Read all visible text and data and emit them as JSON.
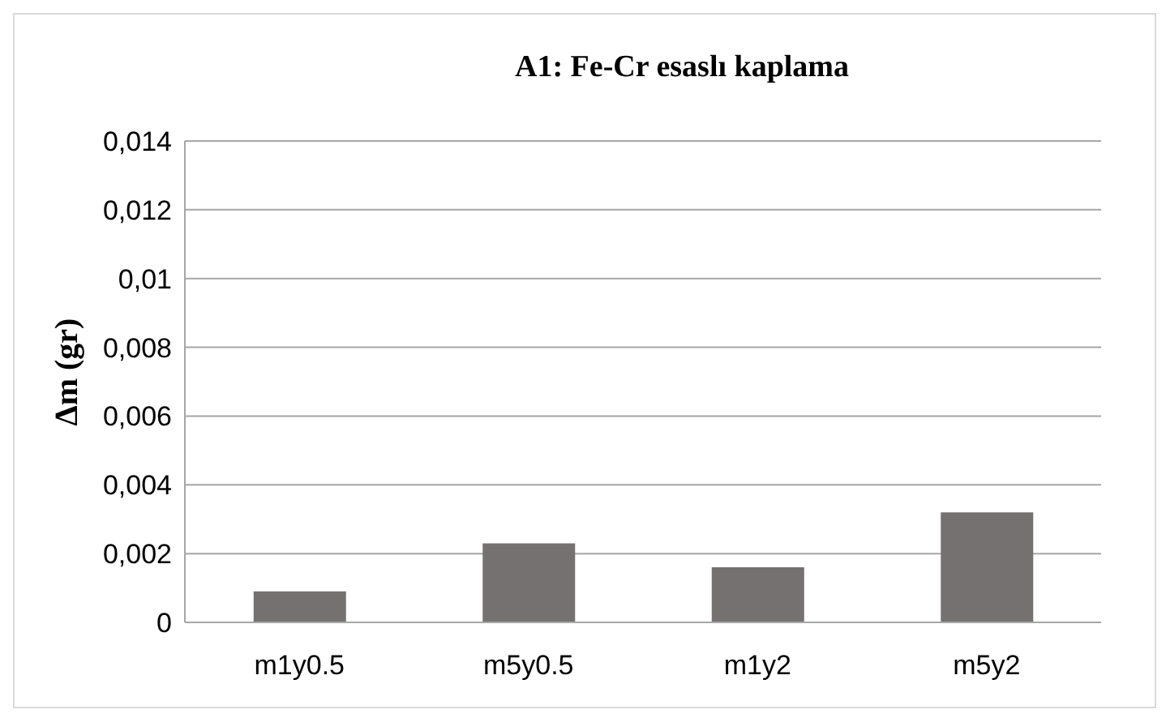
{
  "chart_data": {
    "type": "bar",
    "title": "A1: Fe-Cr esaslı kaplama",
    "ylabel": "Δm (gr)",
    "categories": [
      "m1y0.5",
      "m5y0.5",
      "m1y2",
      "m5y2"
    ],
    "values": [
      0.0009,
      0.0023,
      0.0016,
      0.0032
    ],
    "color": "#767171",
    "ylim": [
      0,
      0.014
    ],
    "yticks": [
      0,
      {
        "value": 0.002,
        "label": "0,002"
      },
      {
        "value": 0.004,
        "label": "0,004"
      },
      {
        "value": 0.006,
        "label": "0,006"
      },
      {
        "value": 0.008,
        "label": "0,008"
      },
      {
        "value": 0.01,
        "label": "0,01"
      },
      {
        "value": 0.012,
        "label": "0,012"
      },
      {
        "value": 0.014,
        "label": "0,014"
      }
    ],
    "grid": "y",
    "legend": false
  }
}
